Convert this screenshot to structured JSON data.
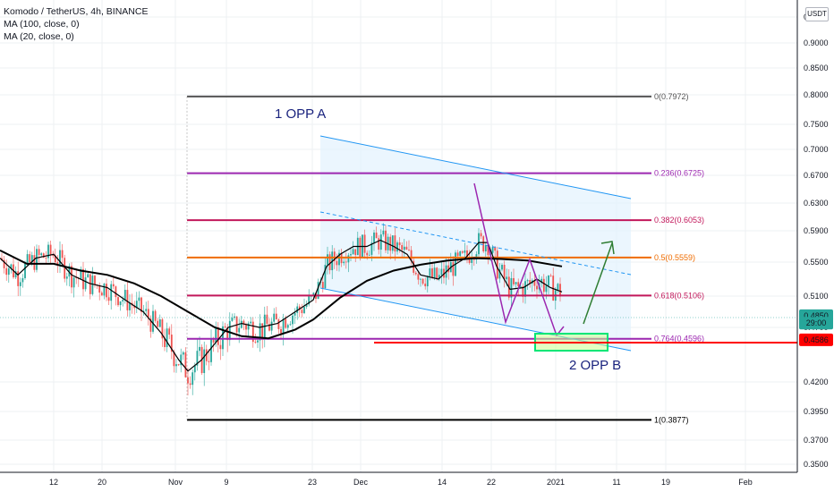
{
  "header": {
    "title": "Komodo / TetherUS, 4h, BINANCE",
    "indicator_1": "MA (100, close, 0)",
    "indicator_2": "MA (20, close, 0)"
  },
  "axis_currency": "USDT",
  "chart_data": {
    "type": "candlestick",
    "title": "Komodo / TetherUS, 4h, BINANCE",
    "ylim": [
      0.35,
      0.95
    ],
    "y_ticks": [
      "0.9500",
      "0.9000",
      "0.8500",
      "0.8000",
      "0.7500",
      "0.7000",
      "0.6700",
      "0.6300",
      "0.5900",
      "0.5500",
      "0.5100",
      "0.4700",
      "0.4200",
      "0.3950",
      "0.3700",
      "0.3500"
    ],
    "x_ticks": [
      "12",
      "20",
      "Nov",
      "9",
      "23",
      "Dec",
      "14",
      "22",
      "2021",
      "11",
      "19",
      "Feb"
    ],
    "price_labels": [
      {
        "text": "0.4850",
        "value": 0.485,
        "color": "#26a69a"
      },
      {
        "text": "29:00",
        "value": 0.4755,
        "color": "#26a69a"
      },
      {
        "text": "0.4586",
        "value": 0.4586,
        "color": "#ff0000"
      }
    ],
    "fibonacci": [
      {
        "label": "0(0.7972)",
        "value": 0.7972,
        "color": "#555555"
      },
      {
        "label": "0.236(0.6725)",
        "value": 0.6725,
        "color": "#9c27b0"
      },
      {
        "label": "0.382(0.6053)",
        "value": 0.6053,
        "color": "#c2185b"
      },
      {
        "label": "0.5(0.5559)",
        "value": 0.5559,
        "color": "#ef6c00"
      },
      {
        "label": "0.618(0.5106)",
        "value": 0.5106,
        "color": "#c2185b"
      },
      {
        "label": "0.764(0.4596)",
        "value": 0.4596,
        "color": "#9c27b0"
      },
      {
        "label": "1(0.3877)",
        "value": 0.3877,
        "color": "#000000"
      }
    ],
    "annotations": [
      "1 OPP A",
      "2 OPP B"
    ],
    "ma100": [
      [
        0,
        0.565
      ],
      [
        30,
        0.548
      ],
      [
        60,
        0.548
      ],
      [
        90,
        0.54
      ],
      [
        120,
        0.535
      ],
      [
        150,
        0.525
      ],
      [
        180,
        0.51
      ],
      [
        210,
        0.49
      ],
      [
        240,
        0.47
      ],
      [
        270,
        0.462
      ],
      [
        300,
        0.46
      ],
      [
        330,
        0.468
      ],
      [
        350,
        0.48
      ],
      [
        380,
        0.508
      ],
      [
        410,
        0.528
      ],
      [
        440,
        0.54
      ],
      [
        470,
        0.547
      ],
      [
        500,
        0.552
      ],
      [
        530,
        0.555
      ],
      [
        560,
        0.554
      ],
      [
        590,
        0.552
      ],
      [
        628,
        0.545
      ]
    ],
    "ma20": [
      [
        0,
        0.555
      ],
      [
        20,
        0.535
      ],
      [
        40,
        0.555
      ],
      [
        60,
        0.56
      ],
      [
        80,
        0.535
      ],
      [
        100,
        0.525
      ],
      [
        120,
        0.52
      ],
      [
        140,
        0.505
      ],
      [
        160,
        0.49
      ],
      [
        180,
        0.465
      ],
      [
        200,
        0.44
      ],
      [
        210,
        0.43
      ],
      [
        225,
        0.44
      ],
      [
        240,
        0.455
      ],
      [
        255,
        0.47
      ],
      [
        270,
        0.475
      ],
      [
        290,
        0.47
      ],
      [
        310,
        0.475
      ],
      [
        330,
        0.49
      ],
      [
        350,
        0.505
      ],
      [
        365,
        0.545
      ],
      [
        380,
        0.56
      ],
      [
        395,
        0.57
      ],
      [
        410,
        0.57
      ],
      [
        425,
        0.578
      ],
      [
        440,
        0.57
      ],
      [
        455,
        0.56
      ],
      [
        470,
        0.535
      ],
      [
        490,
        0.53
      ],
      [
        505,
        0.545
      ],
      [
        520,
        0.555
      ],
      [
        535,
        0.575
      ],
      [
        545,
        0.575
      ],
      [
        555,
        0.545
      ],
      [
        570,
        0.518
      ],
      [
        585,
        0.52
      ],
      [
        600,
        0.53
      ],
      [
        615,
        0.52
      ],
      [
        628,
        0.515
      ]
    ]
  }
}
